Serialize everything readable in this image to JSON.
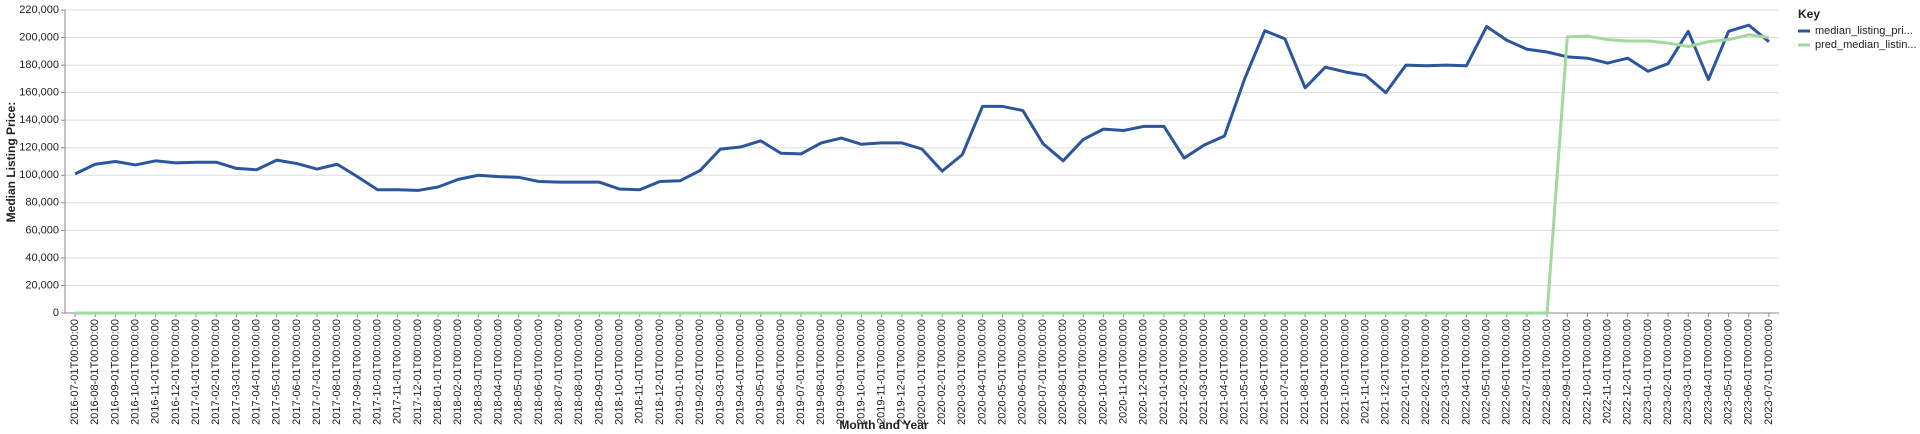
{
  "chart_data": {
    "type": "line",
    "x_label": "Month and Year",
    "y_label": "Median Listing Price:",
    "legend_title": "Key",
    "legend_position": "right",
    "grid": true,
    "categories": [
      "2016-07-01T00:00:00",
      "2016-08-01T00:00:00",
      "2016-09-01T00:00:00",
      "2016-10-01T00:00:00",
      "2016-11-01T00:00:00",
      "2016-12-01T00:00:00",
      "2017-01-01T00:00:00",
      "2017-02-01T00:00:00",
      "2017-03-01T00:00:00",
      "2017-04-01T00:00:00",
      "2017-05-01T00:00:00",
      "2017-06-01T00:00:00",
      "2017-07-01T00:00:00",
      "2017-08-01T00:00:00",
      "2017-09-01T00:00:00",
      "2017-10-01T00:00:00",
      "2017-11-01T00:00:00",
      "2017-12-01T00:00:00",
      "2018-01-01T00:00:00",
      "2018-02-01T00:00:00",
      "2018-03-01T00:00:00",
      "2018-04-01T00:00:00",
      "2018-05-01T00:00:00",
      "2018-06-01T00:00:00",
      "2018-07-01T00:00:00",
      "2018-08-01T00:00:00",
      "2018-09-01T00:00:00",
      "2018-10-01T00:00:00",
      "2018-11-01T00:00:00",
      "2018-12-01T00:00:00",
      "2019-01-01T00:00:00",
      "2019-02-01T00:00:00",
      "2019-03-01T00:00:00",
      "2019-04-01T00:00:00",
      "2019-05-01T00:00:00",
      "2019-06-01T00:00:00",
      "2019-07-01T00:00:00",
      "2019-08-01T00:00:00",
      "2019-09-01T00:00:00",
      "2019-10-01T00:00:00",
      "2019-11-01T00:00:00",
      "2019-12-01T00:00:00",
      "2020-01-01T00:00:00",
      "2020-02-01T00:00:00",
      "2020-03-01T00:00:00",
      "2020-04-01T00:00:00",
      "2020-05-01T00:00:00",
      "2020-06-01T00:00:00",
      "2020-07-01T00:00:00",
      "2020-08-01T00:00:00",
      "2020-09-01T00:00:00",
      "2020-10-01T00:00:00",
      "2020-11-01T00:00:00",
      "2020-12-01T00:00:00",
      "2021-01-01T00:00:00",
      "2021-02-01T00:00:00",
      "2021-03-01T00:00:00",
      "2021-04-01T00:00:00",
      "2021-05-01T00:00:00",
      "2021-06-01T00:00:00",
      "2021-07-01T00:00:00",
      "2021-08-01T00:00:00",
      "2021-09-01T00:00:00",
      "2021-10-01T00:00:00",
      "2021-11-01T00:00:00",
      "2021-12-01T00:00:00",
      "2022-01-01T00:00:00",
      "2022-02-01T00:00:00",
      "2022-03-01T00:00:00",
      "2022-04-01T00:00:00",
      "2022-05-01T00:00:00",
      "2022-06-01T00:00:00",
      "2022-07-01T00:00:00",
      "2022-08-01T00:00:00",
      "2022-09-01T00:00:00",
      "2022-10-01T00:00:00",
      "2022-11-01T00:00:00",
      "2022-12-01T00:00:00",
      "2023-01-01T00:00:00",
      "2023-02-01T00:00:00",
      "2023-03-01T00:00:00",
      "2023-04-01T00:00:00",
      "2023-05-01T00:00:00",
      "2023-06-01T00:00:00",
      "2023-07-01T00:00:00"
    ],
    "series": [
      {
        "name": "median_listing_pri...",
        "color": "#2b569c",
        "values": [
          101000,
          108000,
          110000,
          107500,
          110500,
          109000,
          109500,
          109500,
          105000,
          104000,
          111000,
          108500,
          104500,
          108000,
          99000,
          89500,
          89500,
          89000,
          91500,
          97000,
          100000,
          99000,
          98500,
          95500,
          95000,
          95000,
          95000,
          90000,
          89500,
          95500,
          96000,
          103500,
          119000,
          120500,
          125000,
          116000,
          115500,
          123500,
          127000,
          122500,
          123500,
          123500,
          119000,
          103000,
          115000,
          150000,
          150000,
          147000,
          123000,
          110500,
          126000,
          133500,
          132500,
          135500,
          135500,
          112500,
          122000,
          128500,
          170000,
          205000,
          199000,
          163500,
          178500,
          175000,
          172500,
          160000,
          180000,
          179500,
          180000,
          179500,
          208000,
          198000,
          191500,
          189500,
          186000,
          185000,
          181500,
          185000,
          175500,
          181000,
          204500,
          169500,
          204500,
          209000,
          197000
        ]
      },
      {
        "name": "pred_median_listin...",
        "color": "#a2d99c",
        "values": [
          0,
          0,
          0,
          0,
          0,
          0,
          0,
          0,
          0,
          0,
          0,
          0,
          0,
          0,
          0,
          0,
          0,
          0,
          0,
          0,
          0,
          0,
          0,
          0,
          0,
          0,
          0,
          0,
          0,
          0,
          0,
          0,
          0,
          0,
          0,
          0,
          0,
          0,
          0,
          0,
          0,
          0,
          0,
          0,
          0,
          0,
          0,
          0,
          0,
          0,
          0,
          0,
          0,
          0,
          0,
          0,
          0,
          0,
          0,
          0,
          0,
          0,
          0,
          0,
          0,
          0,
          0,
          0,
          0,
          0,
          0,
          0,
          0,
          0,
          200500,
          201000,
          198500,
          197500,
          197500,
          196000,
          193500,
          197000,
          198500,
          202000,
          200000
        ]
      }
    ],
    "ylim": [
      0,
      220000
    ],
    "yticks": [
      0,
      {
        "value": 20000,
        "label": "20,000"
      },
      {
        "value": 40000,
        "label": "40,000"
      },
      {
        "value": 60000,
        "label": "60,000"
      },
      {
        "value": 80000,
        "label": "80,000"
      },
      {
        "value": 100000,
        "label": "100,000"
      },
      {
        "value": 120000,
        "label": "120,000"
      },
      {
        "value": 140000,
        "label": "140,000"
      },
      {
        "value": 160000,
        "label": "160,000"
      },
      {
        "value": 180000,
        "label": "180,000"
      },
      {
        "value": 200000,
        "label": "200,000"
      },
      {
        "value": 220000,
        "label": "220,000"
      }
    ]
  }
}
